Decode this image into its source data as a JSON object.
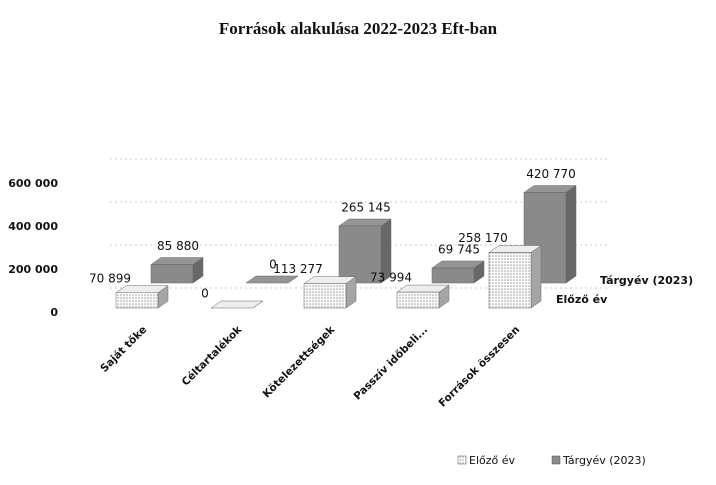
{
  "chart_data": {
    "type": "bar3d",
    "title": "Források alakulása 2022-2023 Eft-ban",
    "categories": [
      "Saját tőke",
      "Céltartalékok",
      "Kötelezettségek",
      "Passzív időbeli...",
      "Források összesen"
    ],
    "series": [
      {
        "name": "Előző év",
        "color": "#dcdcdc",
        "values": [
          70899,
          0,
          113277,
          73994,
          258170
        ],
        "value_labels": [
          "70 899",
          "0",
          "113 277",
          "73 994",
          "258 170"
        ]
      },
      {
        "name": "Tárgyév (2023)",
        "color": "#8a8a8a",
        "values": [
          85880,
          0,
          265145,
          69745,
          420770
        ],
        "value_labels": [
          "85 880",
          "0",
          "265 145",
          "69 745",
          "420 770"
        ]
      }
    ],
    "ylim": [
      0,
      600000
    ],
    "yticks": [
      {
        "value": 0,
        "label": "0"
      },
      {
        "value": 200000,
        "label": "200 000"
      },
      {
        "value": 400000,
        "label": "400 000"
      },
      {
        "value": 600000,
        "label": "600 000"
      }
    ],
    "grid": true,
    "legend": "bottom-right"
  }
}
